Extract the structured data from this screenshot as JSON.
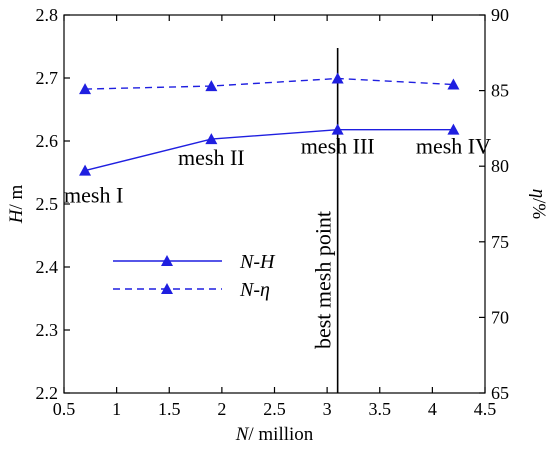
{
  "chart_data": {
    "type": "line",
    "x_axis": {
      "label_symbol": "N",
      "label_unit": "/ million",
      "min": 0.5,
      "max": 4.5,
      "step": 0.5,
      "tick_labels": [
        "0.5",
        "1",
        "1.5",
        "2",
        "2.5",
        "3",
        "3.5",
        "4",
        "4.5"
      ]
    },
    "y_left": {
      "label_symbol": "H",
      "label_unit": "/ m",
      "min": 2.2,
      "max": 2.8,
      "step": 0.1,
      "tick_labels": [
        "2.2",
        "2.3",
        "2.4",
        "2.5",
        "2.6",
        "2.7",
        "2.8"
      ]
    },
    "y_right": {
      "label_symbol": "η",
      "label_unit": "/%",
      "min": 65,
      "max": 90,
      "step": 5,
      "tick_labels": [
        "65",
        "70",
        "75",
        "80",
        "85",
        "90"
      ]
    },
    "series": [
      {
        "name": "N-H",
        "axis": "left",
        "line_style": "solid",
        "color": "#1f1fe0",
        "marker": "triangle",
        "x": [
          0.7,
          1.9,
          3.1,
          4.2
        ],
        "y": [
          2.553,
          2.603,
          2.618,
          2.618
        ]
      },
      {
        "name": "N-η",
        "axis": "right",
        "line_style": "dashed",
        "color": "#1f1fe0",
        "marker": "triangle",
        "x": [
          0.7,
          1.9,
          3.1,
          4.2
        ],
        "y": [
          85.1,
          85.3,
          85.8,
          85.4
        ]
      }
    ],
    "point_labels": [
      "mesh I",
      "mesh II",
      "mesh III",
      "mesh IV"
    ],
    "annotation": {
      "text": "best mesh point",
      "x": 3.1
    },
    "legend": {
      "position": "left-middle"
    },
    "grid": false
  }
}
